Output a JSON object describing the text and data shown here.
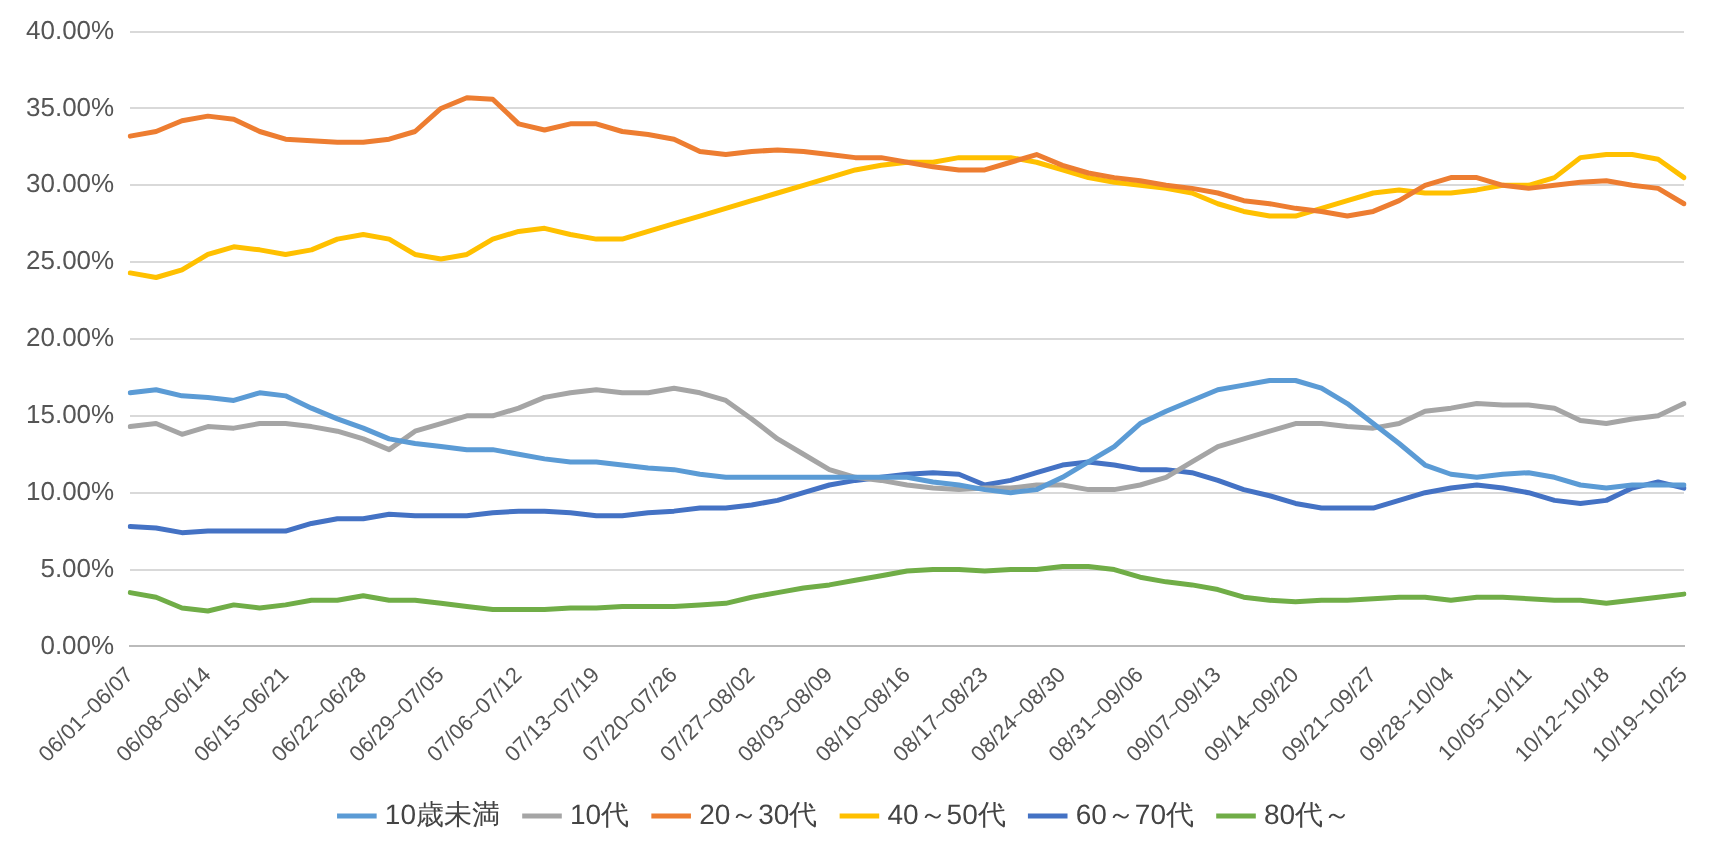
{
  "chart_data": {
    "type": "line",
    "categories": [
      "06/01~06/07",
      null,
      null,
      "06/08~06/14",
      null,
      null,
      "06/15~06/21",
      null,
      null,
      "06/22~06/28",
      null,
      null,
      "06/29~07/05",
      null,
      null,
      "07/06~07/12",
      null,
      null,
      "07/13~07/19",
      null,
      null,
      "07/20~07/26",
      null,
      null,
      "07/27~08/02",
      null,
      null,
      "08/03~08/09",
      null,
      null,
      "08/10~08/16",
      null,
      null,
      "08/17~08/23",
      null,
      null,
      "08/24~08/30",
      null,
      null,
      "08/31~09/06",
      null,
      null,
      "09/07~09/13",
      null,
      null,
      "09/14~09/20",
      null,
      null,
      "09/21~09/27",
      null,
      null,
      "09/28~10/04",
      null,
      null,
      "10/05~10/11",
      null,
      null,
      "10/12~10/18",
      null,
      null,
      "10/19~10/25"
    ],
    "series": [
      {
        "name": "10歳未満",
        "color": "#5b9bd5",
        "values": [
          16.5,
          16.7,
          16.3,
          16.2,
          16.0,
          16.5,
          16.3,
          15.5,
          14.8,
          14.2,
          13.5,
          13.2,
          13.0,
          12.8,
          12.8,
          12.5,
          12.2,
          12.0,
          12.0,
          11.8,
          11.6,
          11.5,
          11.2,
          11.0,
          11.0,
          11.0,
          11.0,
          11.0,
          11.0,
          11.0,
          11.0,
          10.7,
          10.5,
          10.2,
          10.0,
          10.2,
          11.0,
          12.0,
          13.0,
          14.5,
          15.3,
          16.0,
          16.7,
          17.0,
          17.3,
          17.3,
          16.8,
          15.8,
          14.5,
          13.2,
          11.8,
          11.2,
          11.0,
          11.2,
          11.3,
          11.0,
          10.5,
          10.3,
          10.5,
          10.5,
          10.5
        ]
      },
      {
        "name": "10代",
        "color": "#a5a5a5",
        "values": [
          14.3,
          14.5,
          13.8,
          14.3,
          14.2,
          14.5,
          14.5,
          14.3,
          14.0,
          13.5,
          12.8,
          14.0,
          14.5,
          15.0,
          15.0,
          15.5,
          16.2,
          16.5,
          16.7,
          16.5,
          16.5,
          16.8,
          16.5,
          16.0,
          14.8,
          13.5,
          12.5,
          11.5,
          11.0,
          10.8,
          10.5,
          10.3,
          10.2,
          10.3,
          10.3,
          10.5,
          10.5,
          10.2,
          10.2,
          10.5,
          11.0,
          12.0,
          13.0,
          13.5,
          14.0,
          14.5,
          14.5,
          14.3,
          14.2,
          14.5,
          15.3,
          15.5,
          15.8,
          15.7,
          15.7,
          15.5,
          14.7,
          14.5,
          14.8,
          15.0,
          15.8
        ]
      },
      {
        "name": "20～30代",
        "color": "#ed7d31",
        "values": [
          33.2,
          33.5,
          34.2,
          34.5,
          34.3,
          33.5,
          33.0,
          32.9,
          32.8,
          32.8,
          33.0,
          33.5,
          35.0,
          35.7,
          35.6,
          34.0,
          33.6,
          34.0,
          34.0,
          33.5,
          33.3,
          33.0,
          32.2,
          32.0,
          32.2,
          32.3,
          32.2,
          32.0,
          31.8,
          31.8,
          31.5,
          31.2,
          31.0,
          31.0,
          31.5,
          32.0,
          31.3,
          30.8,
          30.5,
          30.3,
          30.0,
          29.8,
          29.5,
          29.0,
          28.8,
          28.5,
          28.3,
          28.0,
          28.3,
          29.0,
          30.0,
          30.5,
          30.5,
          30.0,
          29.8,
          30.0,
          30.2,
          30.3,
          30.0,
          29.8,
          28.8
        ]
      },
      {
        "name": "40～50代",
        "color": "#ffc000",
        "values": [
          24.3,
          24.0,
          24.5,
          25.5,
          26.0,
          25.8,
          25.5,
          25.8,
          26.5,
          26.8,
          26.5,
          25.5,
          25.2,
          25.5,
          26.5,
          27.0,
          27.2,
          26.8,
          26.5,
          26.5,
          27.0,
          27.5,
          28.0,
          28.5,
          29.0,
          29.5,
          30.0,
          30.5,
          31.0,
          31.3,
          31.5,
          31.5,
          31.8,
          31.8,
          31.8,
          31.5,
          31.0,
          30.5,
          30.2,
          30.0,
          29.8,
          29.5,
          28.8,
          28.3,
          28.0,
          28.0,
          28.5,
          29.0,
          29.5,
          29.7,
          29.5,
          29.5,
          29.7,
          30.0,
          30.0,
          30.5,
          31.8,
          32.0,
          32.0,
          31.7,
          30.5
        ]
      },
      {
        "name": "60～70代",
        "color": "#4472c4",
        "values": [
          7.8,
          7.7,
          7.4,
          7.5,
          7.5,
          7.5,
          7.5,
          8.0,
          8.3,
          8.3,
          8.6,
          8.5,
          8.5,
          8.5,
          8.7,
          8.8,
          8.8,
          8.7,
          8.5,
          8.5,
          8.7,
          8.8,
          9.0,
          9.0,
          9.2,
          9.5,
          10.0,
          10.5,
          10.8,
          11.0,
          11.2,
          11.3,
          11.2,
          10.5,
          10.8,
          11.3,
          11.8,
          12.0,
          11.8,
          11.5,
          11.5,
          11.3,
          10.8,
          10.2,
          9.8,
          9.3,
          9.0,
          9.0,
          9.0,
          9.5,
          10.0,
          10.3,
          10.5,
          10.3,
          10.0,
          9.5,
          9.3,
          9.5,
          10.3,
          10.7,
          10.3
        ]
      },
      {
        "name": "80代～",
        "color": "#70ad47",
        "values": [
          3.5,
          3.2,
          2.5,
          2.3,
          2.7,
          2.5,
          2.7,
          3.0,
          3.0,
          3.3,
          3.0,
          3.0,
          2.8,
          2.6,
          2.4,
          2.4,
          2.4,
          2.5,
          2.5,
          2.6,
          2.6,
          2.6,
          2.7,
          2.8,
          3.2,
          3.5,
          3.8,
          4.0,
          4.3,
          4.6,
          4.9,
          5.0,
          5.0,
          4.9,
          5.0,
          5.0,
          5.2,
          5.2,
          5.0,
          4.5,
          4.2,
          4.0,
          3.7,
          3.2,
          3.0,
          2.9,
          3.0,
          3.0,
          3.1,
          3.2,
          3.2,
          3.0,
          3.2,
          3.2,
          3.1,
          3.0,
          3.0,
          2.8,
          3.0,
          3.2,
          3.4
        ]
      }
    ],
    "ylim": [
      0,
      40
    ],
    "yticks": [
      {
        "value": 0,
        "label": "0.00%"
      },
      {
        "value": 5,
        "label": "5.00%"
      },
      {
        "value": 10,
        "label": "10.00%"
      },
      {
        "value": 15,
        "label": "15.00%"
      },
      {
        "value": 20,
        "label": "20.00%"
      },
      {
        "value": 25,
        "label": "25.00%"
      },
      {
        "value": 30,
        "label": "30.00%"
      },
      {
        "value": 35,
        "label": "35.00%"
      },
      {
        "value": 40,
        "label": "40.00%"
      }
    ],
    "grid": "y",
    "legend": "bottom",
    "marker": "none",
    "line_style": "solid"
  }
}
